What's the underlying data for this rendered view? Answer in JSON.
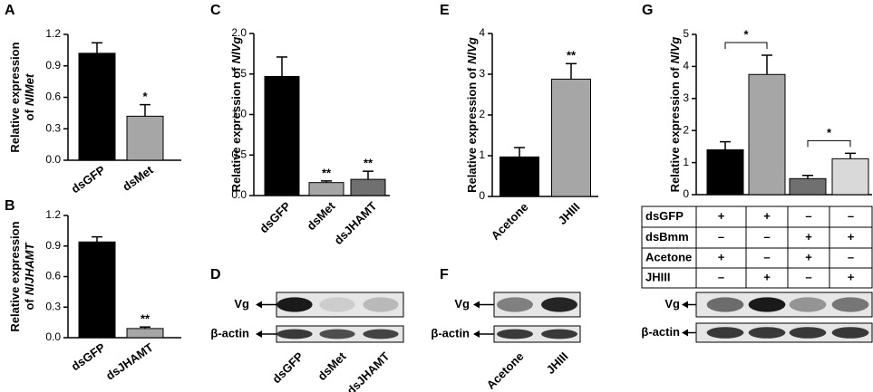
{
  "chart_data": [
    {
      "type": "bar",
      "panel": "A",
      "ylabel": [
        [
          "Relative expression"
        ],
        [
          "of",
          "NlMet"
        ]
      ],
      "categories": [
        "dsGFP",
        "dsMet"
      ],
      "values": [
        1.02,
        0.42
      ],
      "errors": [
        0.1,
        0.11
      ],
      "colors": [
        "#000000",
        "#a6a6a6"
      ],
      "ylim": [
        0,
        1.2
      ],
      "yticks": [
        {
          "value": 0,
          "label": "0.0"
        },
        0.3,
        0.6,
        0.9,
        1.2
      ],
      "annotations": [
        {
          "category": "dsMet",
          "text": "*"
        }
      ]
    },
    {
      "type": "bar",
      "panel": "B",
      "ylabel": [
        [
          "Relative expression"
        ],
        [
          "of",
          "NlJHAMT"
        ]
      ],
      "categories": [
        "dsGFP",
        "dsJHAMT"
      ],
      "values": [
        0.94,
        0.09
      ],
      "errors": [
        0.05,
        0.015
      ],
      "colors": [
        "#000000",
        "#a6a6a6"
      ],
      "ylim": [
        0,
        1.2
      ],
      "yticks": [
        {
          "value": 0,
          "label": "0.0"
        },
        0.3,
        0.6,
        0.9,
        1.2
      ],
      "annotations": [
        {
          "category": "dsJHAMT",
          "text": "**"
        }
      ]
    },
    {
      "type": "bar",
      "panel": "C",
      "ylabel": [
        [
          "Relative expression of",
          "NlVg"
        ]
      ],
      "categories": [
        "dsGFP",
        "dsMet",
        "dsJHAMT"
      ],
      "values": [
        1.47,
        0.16,
        0.2
      ],
      "errors": [
        0.24,
        0.02,
        0.1
      ],
      "colors": [
        "#000000",
        "#a6a6a6",
        "#707070"
      ],
      "ylim": [
        0,
        2
      ],
      "yticks": [
        {
          "value": 0,
          "label": "0.0"
        },
        0.5,
        {
          "value": 1,
          "label": "1.0"
        },
        1.5,
        {
          "value": 2,
          "label": "2.0"
        }
      ],
      "annotations": [
        {
          "category": "dsMet",
          "text": "**"
        },
        {
          "category": "dsJHAMT",
          "text": "**"
        }
      ]
    },
    {
      "type": "bar",
      "panel": "E",
      "ylabel": [
        [
          "Relative expression of",
          "NlVg"
        ]
      ],
      "categories": [
        "Acetone",
        "JHIII"
      ],
      "values": [
        0.97,
        2.88
      ],
      "errors": [
        0.23,
        0.38
      ],
      "colors": [
        "#000000",
        "#a6a6a6"
      ],
      "ylim": [
        0,
        4
      ],
      "yticks": [
        0,
        1,
        2,
        3,
        4
      ],
      "annotations": [
        {
          "category": "JHIII",
          "text": "**"
        }
      ]
    },
    {
      "type": "bar",
      "panel": "G",
      "ylabel": [
        [
          "Relative expression of",
          "NlVg"
        ]
      ],
      "categories": [
        null,
        null,
        null,
        null
      ],
      "values": [
        1.4,
        3.75,
        0.5,
        1.12
      ],
      "errors": [
        0.25,
        0.6,
        0.1,
        0.17
      ],
      "colors": [
        "#000000",
        "#a6a6a6",
        "#707070",
        "#d9d9d9"
      ],
      "ylim": [
        0,
        5
      ],
      "yticks": [
        0,
        1,
        2,
        3,
        4,
        5
      ],
      "brackets": [
        {
          "from": 0,
          "to": 1,
          "text": "*"
        },
        {
          "from": 2,
          "to": 3,
          "text": "*"
        }
      ],
      "table": [
        {
          "label": "dsGFP",
          "cells": [
            "+",
            "+",
            "–",
            "–"
          ]
        },
        {
          "label": "dsBmm",
          "cells": [
            "–",
            "–",
            "+",
            "+"
          ]
        },
        {
          "label": "Acetone",
          "cells": [
            "+",
            "–",
            "+",
            "–"
          ]
        },
        {
          "label": "JHIII",
          "cells": [
            "–",
            "+",
            "–",
            "+"
          ]
        }
      ]
    }
  ],
  "blots": [
    {
      "panel": "D",
      "rows": [
        "Vg",
        "β-actin"
      ],
      "lanes": [
        "dsGFP",
        "dsMet",
        "dsJHAMT"
      ]
    },
    {
      "panel": "F",
      "rows": [
        "Vg",
        "β-actin"
      ],
      "lanes": [
        "Acetone",
        "JHIII"
      ]
    },
    {
      "rows": [
        "Vg",
        "β-actin"
      ]
    }
  ]
}
